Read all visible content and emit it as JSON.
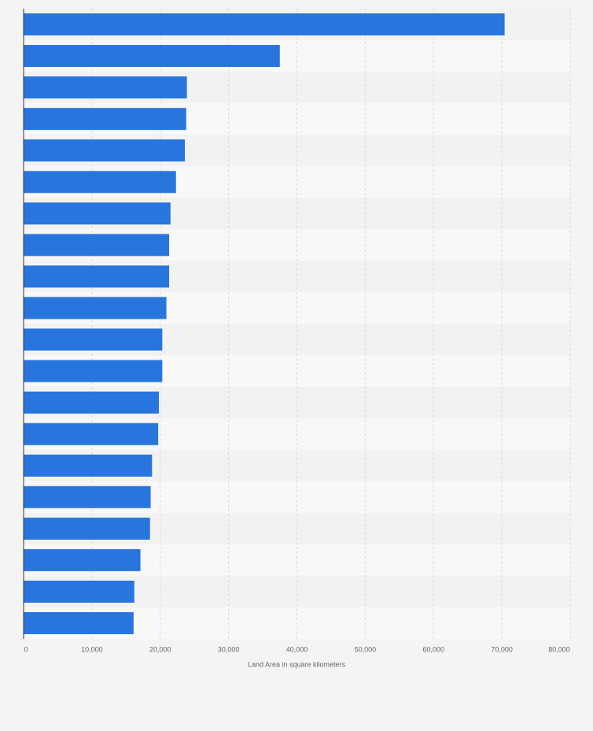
{
  "chart_data": {
    "type": "bar",
    "orientation": "horizontal",
    "x_label": "Land Area in square kilometers",
    "values": [
      70400,
      37500,
      23900,
      23800,
      23600,
      22300,
      21500,
      21300,
      21300,
      20900,
      20300,
      20300,
      19800,
      19700,
      18800,
      18600,
      18500,
      17100,
      16200,
      16100
    ],
    "color": "#2876dd",
    "xlim": [
      0,
      80000
    ],
    "xticks": [
      0,
      {
        "value": 10000,
        "label": "10,000"
      },
      {
        "value": 20000,
        "label": "20,000"
      },
      {
        "value": 30000,
        "label": "30,000"
      },
      {
        "value": 40000,
        "label": "40,000"
      },
      {
        "value": 50000,
        "label": "50,000"
      },
      {
        "value": 60000,
        "label": "60,000"
      },
      {
        "value": 70000,
        "label": "70,000"
      },
      {
        "value": 80000,
        "label": "80,000"
      }
    ],
    "grid": true
  }
}
